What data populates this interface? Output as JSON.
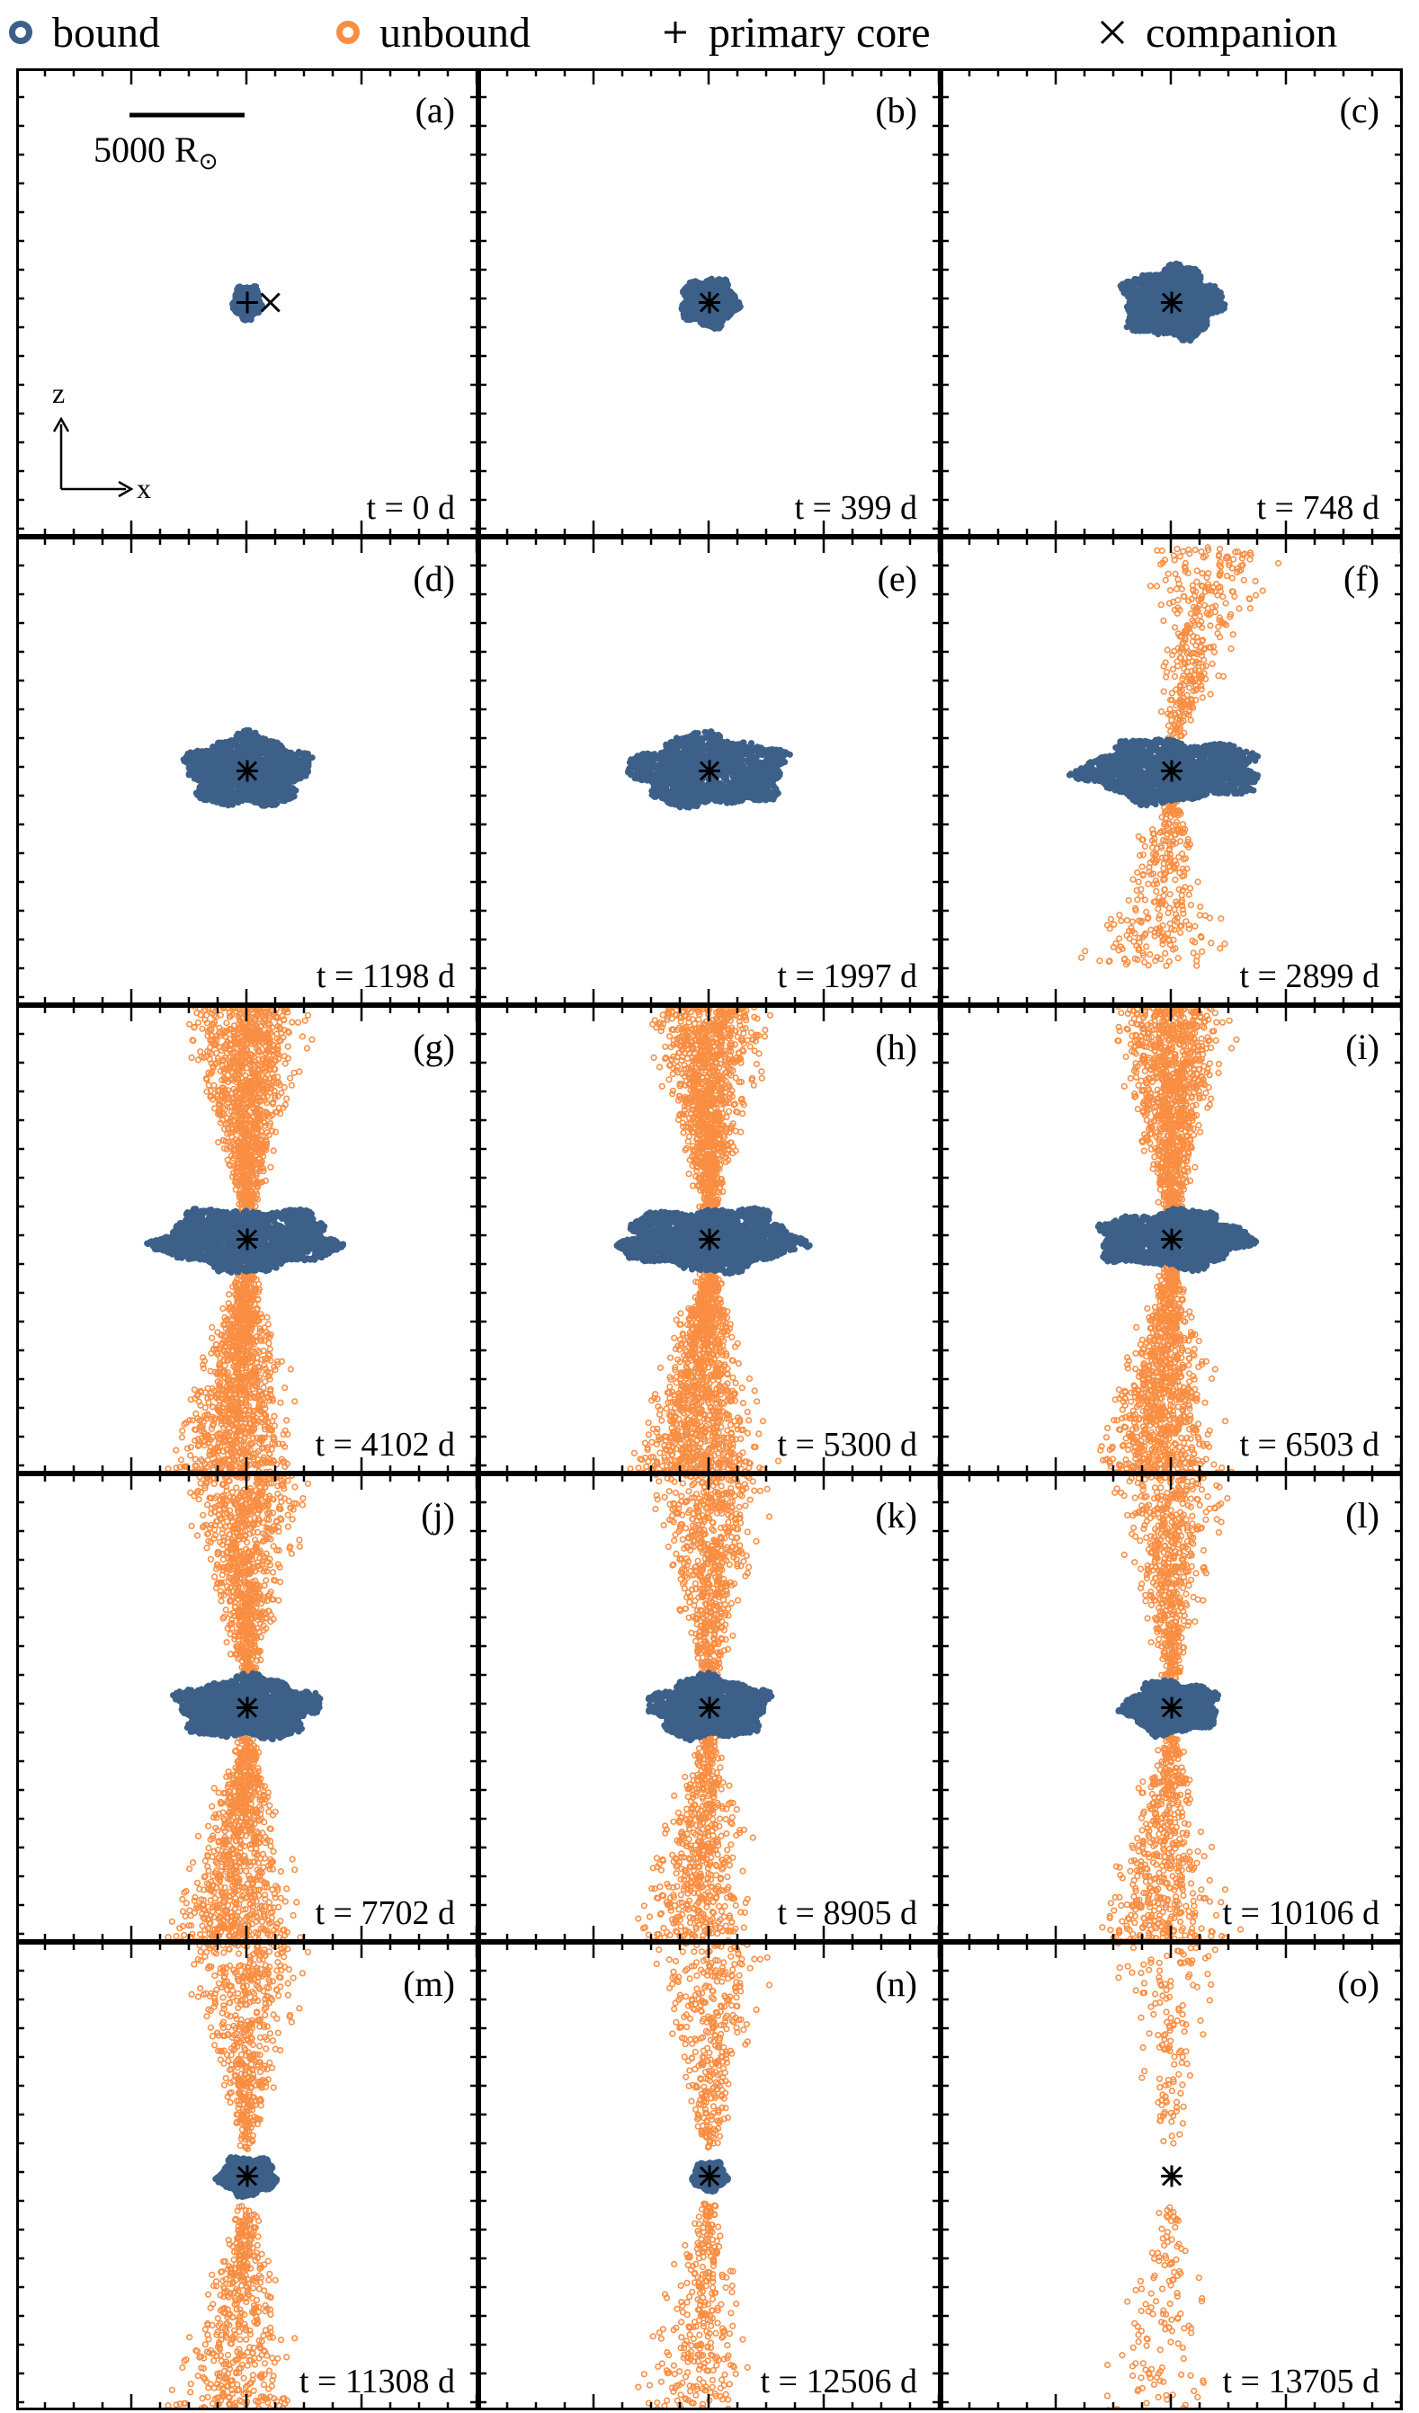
{
  "legend": {
    "bound": {
      "label": "bound",
      "color": "#3d6089",
      "icon": "circle-marker"
    },
    "unbound": {
      "label": "unbound",
      "color": "#f98e43",
      "icon": "circle-marker"
    },
    "core": {
      "label": "primary core",
      "icon": "plus-marker"
    },
    "companion": {
      "label": "companion",
      "icon": "x-marker"
    }
  },
  "scale_bar": {
    "label": "5000 R",
    "subscript": "⊙"
  },
  "axis_indicator": {
    "x": "x",
    "z": "z"
  },
  "chart_data": {
    "type": "scatter",
    "layout": "5x3 panel grid",
    "units": {
      "time": "d"
    },
    "series": [
      {
        "name": "bound",
        "color": "#3d6089"
      },
      {
        "name": "unbound",
        "color": "#f98e43"
      },
      {
        "name": "primary core",
        "marker": "+"
      },
      {
        "name": "companion",
        "marker": "×"
      }
    ],
    "panels": [
      {
        "label": "(a)",
        "time": "t = 0 d",
        "bound_w": 0.06,
        "bound_h": 0.07,
        "cx": 0.0,
        "unbound_top": 0.0,
        "unbound_bottom": 0.0,
        "unbound_density": 0,
        "companion_dx": 0.05,
        "companion_dz": 0.0
      },
      {
        "label": "(b)",
        "time": "t = 399 d",
        "bound_w": 0.12,
        "bound_h": 0.1,
        "cx": 0.0,
        "unbound_top": 0.0,
        "unbound_bottom": 0.0,
        "unbound_density": 0
      },
      {
        "label": "(c)",
        "time": "t = 748 d",
        "bound_w": 0.21,
        "bound_h": 0.15,
        "cx": 0.0,
        "unbound_top": 0.0,
        "unbound_bottom": 0.0,
        "unbound_density": 0
      },
      {
        "label": "(d)",
        "time": "t = 1198 d",
        "bound_w": 0.26,
        "bound_h": 0.15,
        "cx": 0.0,
        "unbound_top": 0.0,
        "unbound_bottom": 0.0,
        "unbound_density": 0
      },
      {
        "label": "(e)",
        "time": "t = 1997 d",
        "bound_w": 0.33,
        "bound_h": 0.15,
        "cx": 0.0,
        "unbound_top": 0.0,
        "unbound_bottom": 0.0,
        "unbound_density": 0
      },
      {
        "label": "(f)",
        "time": "t = 2899 d",
        "bound_w": 0.38,
        "bound_h": 0.13,
        "cx": 0.0,
        "unbound_top": 0.42,
        "unbound_bottom": 0.36,
        "unbound_density": 0.25,
        "unbound_top_dx": 0.08
      },
      {
        "label": "(g)",
        "time": "t = 4102 d",
        "bound_w": 0.38,
        "bound_h": 0.13,
        "cx": 0.0,
        "unbound_top": 0.5,
        "unbound_bottom": 0.5,
        "unbound_density": 1.0
      },
      {
        "label": "(h)",
        "time": "t = 5300 d",
        "bound_w": 0.38,
        "bound_h": 0.13,
        "cx": 0.0,
        "unbound_top": 0.5,
        "unbound_bottom": 0.5,
        "unbound_density": 1.0
      },
      {
        "label": "(i)",
        "time": "t = 6503 d",
        "bound_w": 0.32,
        "bound_h": 0.12,
        "cx": 0.0,
        "unbound_top": 0.5,
        "unbound_bottom": 0.5,
        "unbound_density": 0.9
      },
      {
        "label": "(j)",
        "time": "t = 7702 d",
        "bound_w": 0.3,
        "bound_h": 0.13,
        "cx": 0.0,
        "unbound_top": 0.5,
        "unbound_bottom": 0.5,
        "unbound_density": 0.75
      },
      {
        "label": "(k)",
        "time": "t = 8905 d",
        "bound_w": 0.25,
        "bound_h": 0.13,
        "cx": 0.0,
        "unbound_top": 0.5,
        "unbound_bottom": 0.5,
        "unbound_density": 0.55
      },
      {
        "label": "(l)",
        "time": "t = 10106 d",
        "bound_w": 0.2,
        "bound_h": 0.11,
        "cx": 0.0,
        "unbound_top": 0.5,
        "unbound_bottom": 0.5,
        "unbound_density": 0.5
      },
      {
        "label": "(m)",
        "time": "t = 11308 d",
        "bound_w": 0.12,
        "bound_h": 0.08,
        "cx": 0.0,
        "unbound_top": 0.5,
        "unbound_bottom": 0.5,
        "unbound_density": 0.45
      },
      {
        "label": "(n)",
        "time": "t = 12506 d",
        "bound_w": 0.07,
        "bound_h": 0.06,
        "cx": 0.0,
        "unbound_top": 0.5,
        "unbound_bottom": 0.5,
        "unbound_density": 0.3
      },
      {
        "label": "(o)",
        "time": "t = 13705 d",
        "bound_w": 0.0,
        "bound_h": 0.0,
        "cx": 0.0,
        "unbound_top": 0.5,
        "unbound_bottom": 0.5,
        "unbound_density": 0.12
      }
    ]
  }
}
